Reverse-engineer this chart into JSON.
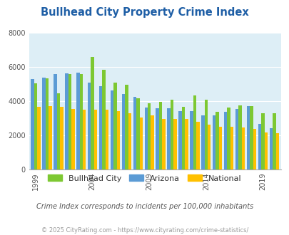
{
  "title": "Bullhead City Property Crime Index",
  "subtitle": "Crime Index corresponds to incidents per 100,000 inhabitants",
  "footer": "© 2025 CityRating.com - https://www.cityrating.com/crime-statistics/",
  "years": [
    1999,
    2000,
    2001,
    2002,
    2003,
    2004,
    2005,
    2006,
    2007,
    2008,
    2009,
    2010,
    2011,
    2012,
    2013,
    2014,
    2015,
    2016,
    2017,
    2018,
    2019,
    2020
  ],
  "bullhead_city": [
    5050,
    5320,
    4450,
    5600,
    5570,
    6600,
    5820,
    5100,
    4940,
    4150,
    3850,
    3950,
    4080,
    3650,
    4350,
    4080,
    3350,
    3600,
    3750,
    3700,
    3280,
    3300
  ],
  "arizona": [
    5280,
    5380,
    5590,
    5620,
    5650,
    5100,
    4880,
    4620,
    4430,
    4230,
    3600,
    3560,
    3560,
    3420,
    3420,
    3180,
    3150,
    3380,
    3550,
    3700,
    2640,
    2400
  ],
  "national": [
    3680,
    3700,
    3680,
    3520,
    3480,
    3500,
    3480,
    3430,
    3290,
    3050,
    3180,
    2950,
    2940,
    2940,
    2770,
    2600,
    2500,
    2480,
    2460,
    2360,
    2140,
    2100
  ],
  "bar_colors": {
    "bullhead_city": "#7dc832",
    "arizona": "#5b9bd5",
    "national": "#ffc000"
  },
  "bg_color": "#ddeef6",
  "ylim": [
    0,
    8000
  ],
  "yticks": [
    0,
    2000,
    4000,
    6000,
    8000
  ],
  "xtick_years": [
    1999,
    2004,
    2009,
    2014,
    2019
  ],
  "title_color": "#1f5fa6",
  "subtitle_color": "#555555",
  "footer_color": "#999999",
  "legend_labels": [
    "Bullhead City",
    "Arizona",
    "National"
  ]
}
